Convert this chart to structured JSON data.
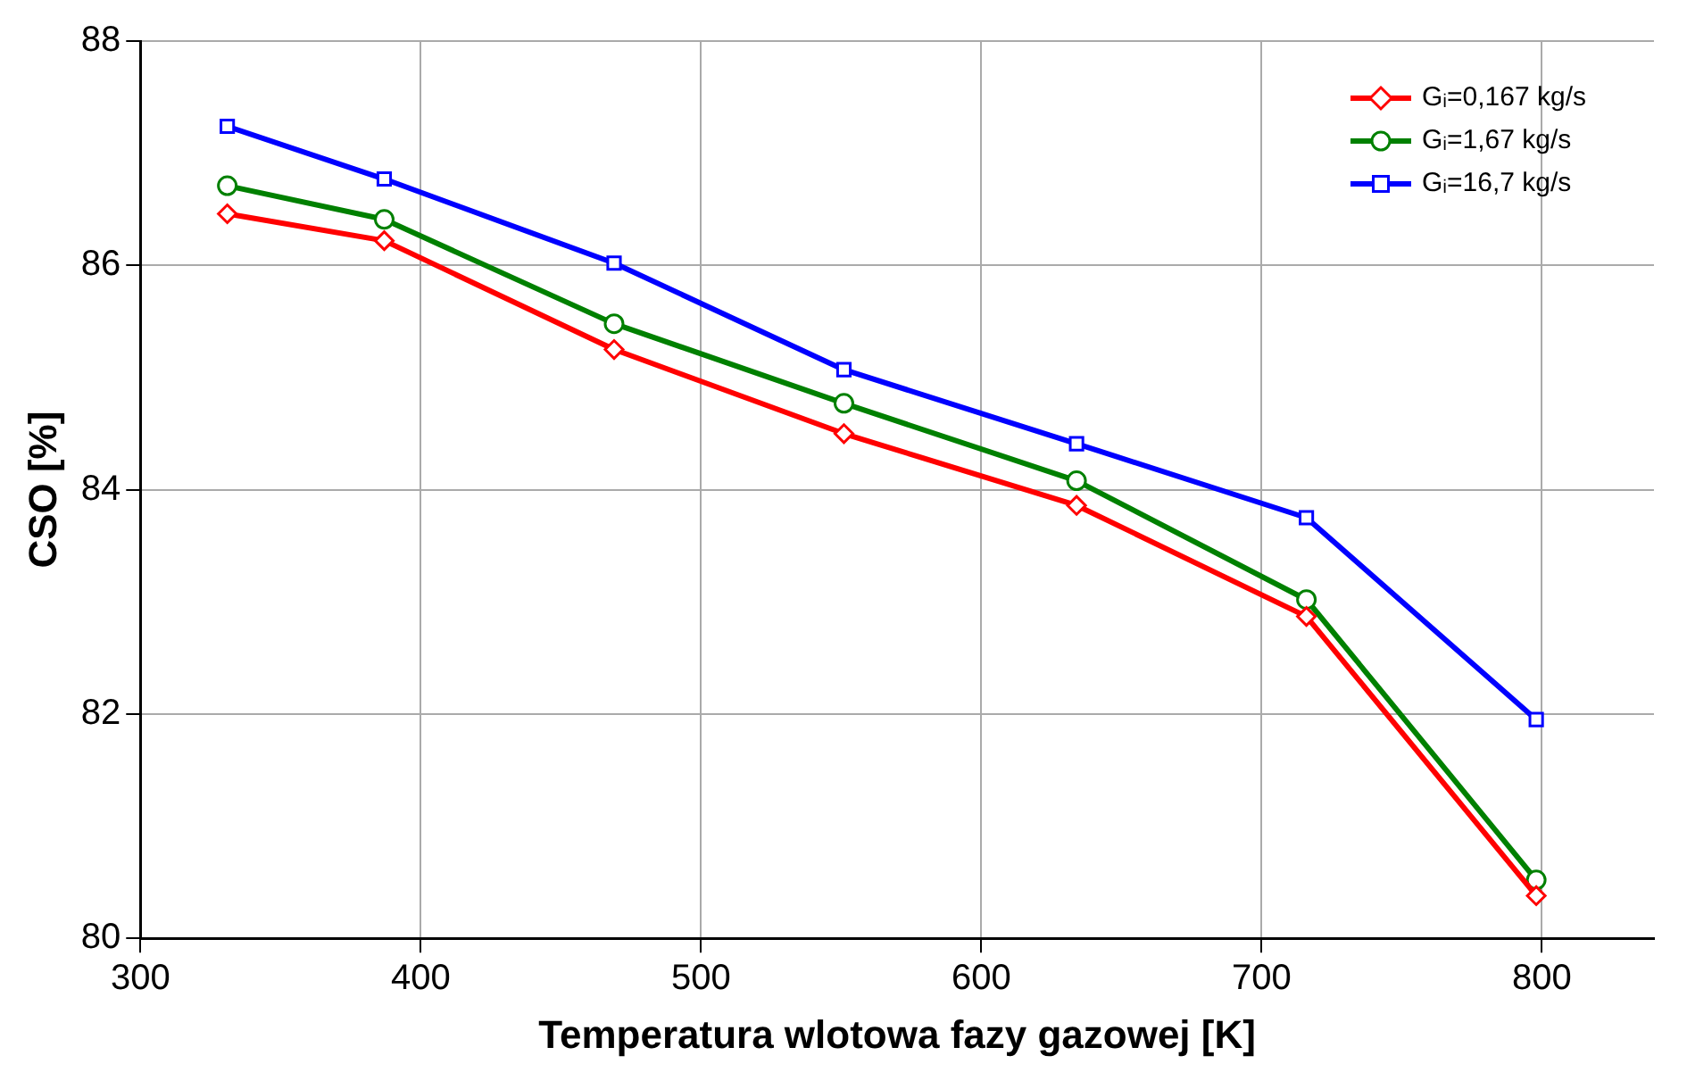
{
  "chart_data": {
    "type": "line",
    "xlabel": "Temperatura wlotowa fazy gazowej [K]",
    "ylabel": "CSO [%]",
    "x": [
      331,
      387,
      469,
      551,
      634,
      716,
      798
    ],
    "series": [
      {
        "name": "Gᵢ=0,167 kg/s",
        "color": "#ff0000",
        "marker": "diamond",
        "values": [
          86.46,
          86.22,
          85.25,
          84.5,
          83.86,
          82.87,
          80.38
        ]
      },
      {
        "name": "Gᵢ=1,67 kg/s",
        "color": "#008000",
        "marker": "circle",
        "values": [
          86.71,
          86.41,
          85.48,
          84.77,
          84.08,
          83.02,
          80.52
        ]
      },
      {
        "name": "Gᵢ=16,7 kg/s",
        "color": "#0000ff",
        "marker": "square",
        "values": [
          87.24,
          86.77,
          86.02,
          85.07,
          84.41,
          83.75,
          81.95
        ]
      }
    ],
    "xlim": [
      300,
      840
    ],
    "xticks": [
      300,
      400,
      500,
      600,
      700,
      800
    ],
    "ylim": [
      80,
      88
    ],
    "yticks": [
      80,
      82,
      84,
      86,
      88
    ],
    "grid": true,
    "legend": "top right",
    "line_style": "solid"
  }
}
